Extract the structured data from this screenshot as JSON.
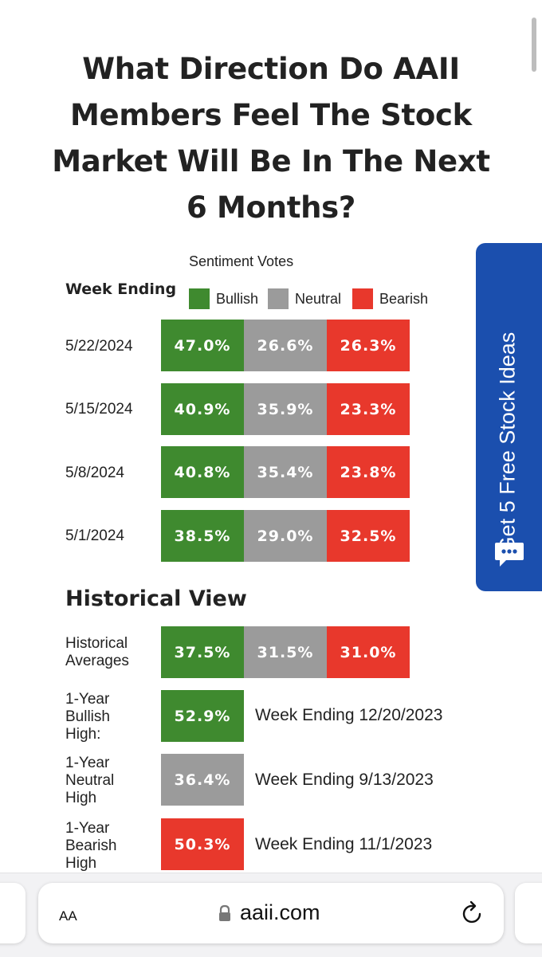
{
  "title": "What Direction Do AAII Members Feel The Stock Market Will Be In The Next 6 Months?",
  "sentiment": {
    "caption": "Sentiment Votes",
    "week_ending_label": "Week Ending",
    "legend": {
      "bullish": "Bullish",
      "neutral": "Neutral",
      "bearish": "Bearish"
    },
    "colors": {
      "bullish": "#3f8a2f",
      "neutral": "#9b9b9b",
      "bearish": "#e8382c"
    },
    "rows": [
      {
        "date": "5/22/2024",
        "bullish": "47.0%",
        "neutral": "26.6%",
        "bearish": "26.3%"
      },
      {
        "date": "5/15/2024",
        "bullish": "40.9%",
        "neutral": "35.9%",
        "bearish": "23.3%"
      },
      {
        "date": "5/8/2024",
        "bullish": "40.8%",
        "neutral": "35.4%",
        "bearish": "23.8%"
      },
      {
        "date": "5/1/2024",
        "bullish": "38.5%",
        "neutral": "29.0%",
        "bearish": "32.5%"
      }
    ]
  },
  "historical": {
    "title": "Historical View",
    "averages": {
      "label": "Historical Averages",
      "bullish": "37.5%",
      "neutral": "31.5%",
      "bearish": "31.0%"
    },
    "bullish_high": {
      "label": "1-Year Bullish High:",
      "value": "52.9%",
      "note": "Week Ending 12/20/2023"
    },
    "neutral_high": {
      "label": "1-Year Neutral High",
      "value": "36.4%",
      "note": "Week Ending 9/13/2023"
    },
    "bearish_high": {
      "label": "1-Year Bearish High",
      "value": "50.3%",
      "note": "Week Ending 11/1/2023"
    }
  },
  "side_tab": {
    "text": "Get 5 Free Stock Ideas",
    "icon": "chat-bubble-icon",
    "color": "#1b4fae"
  },
  "browser": {
    "text_size_button": "AA",
    "domain": "aaii.com",
    "lock_icon": "lock-icon",
    "reload_icon": "reload-icon"
  }
}
